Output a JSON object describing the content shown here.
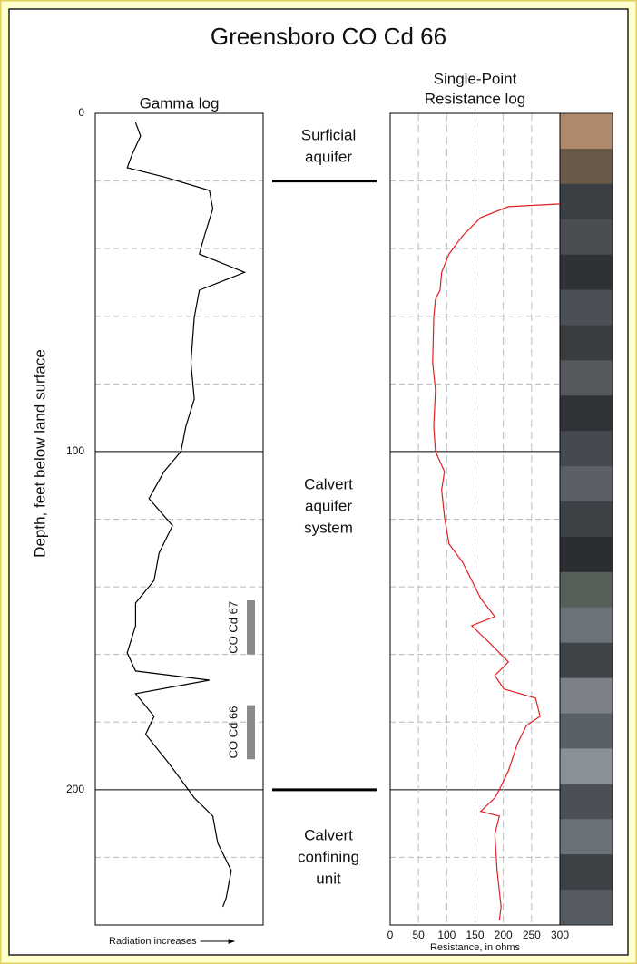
{
  "figure": {
    "title": "Greensboro  CO Cd 66",
    "ylabel": "Depth, feet below land surface",
    "ylim": [
      0,
      240
    ],
    "yticks": [
      0,
      100,
      200
    ],
    "minor_grid": [
      20,
      40,
      60,
      80,
      120,
      140,
      160,
      180,
      220
    ],
    "units": [
      {
        "lines": [
          "Surficial",
          "aquifer"
        ]
      },
      {
        "lines": [
          "Calvert",
          "aquifer",
          "system"
        ]
      },
      {
        "lines": [
          "Calvert",
          "confining",
          "unit"
        ]
      }
    ],
    "boundaries": [
      20,
      200
    ],
    "samples": [
      {
        "label": "CO Cd 67",
        "top": 144,
        "bottom": 160
      },
      {
        "label": "CO Cd 66",
        "top": 175,
        "bottom": 191
      }
    ]
  },
  "chart_data": [
    {
      "type": "line",
      "title": "Gamma log",
      "xlabel": "Radiation increases",
      "xlim": [
        0,
        100
      ],
      "color": "#000000",
      "depth": [
        2.7,
        6.7,
        12.1,
        16.1,
        18.8,
        22.8,
        28.2,
        36.2,
        41.6,
        47,
        52.3,
        60.3,
        73.7,
        84.5,
        92.5,
        100,
        105.9,
        113.9,
        121.9,
        130,
        138.1,
        144.8,
        151.5,
        159.5,
        164.9,
        167.6,
        171.6,
        178.3,
        183.6,
        191.7,
        197,
        202.4,
        207.8,
        215.8,
        223.9,
        231.9,
        234.6
      ],
      "values": [
        24,
        27,
        22,
        19,
        41,
        68,
        70,
        65,
        62,
        89,
        62,
        59,
        57,
        59,
        54,
        51,
        41,
        32,
        46,
        38,
        35,
        24,
        24,
        19,
        24,
        68,
        24,
        35,
        30,
        43,
        51,
        59,
        70,
        73,
        81,
        78,
        76
      ]
    },
    {
      "type": "line",
      "title_lines": [
        "Single-Point",
        "Resistance log"
      ],
      "xlabel": "Resistance, in ohms",
      "xlim": [
        0,
        300
      ],
      "xticks": [
        0,
        50,
        100,
        150,
        200,
        250,
        300
      ],
      "color": "#e02020",
      "depth": [
        26.8,
        27.6,
        30.8,
        36.2,
        41.6,
        47,
        52.3,
        55,
        60.3,
        73.7,
        81.8,
        92.5,
        100,
        105.9,
        111.3,
        119.3,
        127.3,
        132.7,
        138.1,
        143.4,
        148.8,
        151.5,
        156.8,
        162.2,
        166.2,
        170.2,
        172.9,
        178.3,
        181,
        186.3,
        194.4,
        200,
        202.4,
        206.4,
        207.8,
        213.1,
        223.9,
        234.6,
        238.6
      ],
      "values": [
        300,
        209,
        160,
        128,
        104,
        91,
        88,
        80,
        77,
        75,
        80,
        77,
        80,
        96,
        91,
        96,
        104,
        128,
        144,
        160,
        185,
        144,
        177,
        209,
        185,
        201,
        257,
        265,
        241,
        225,
        209,
        193,
        185,
        160,
        193,
        185,
        189,
        196,
        193
      ]
    }
  ]
}
